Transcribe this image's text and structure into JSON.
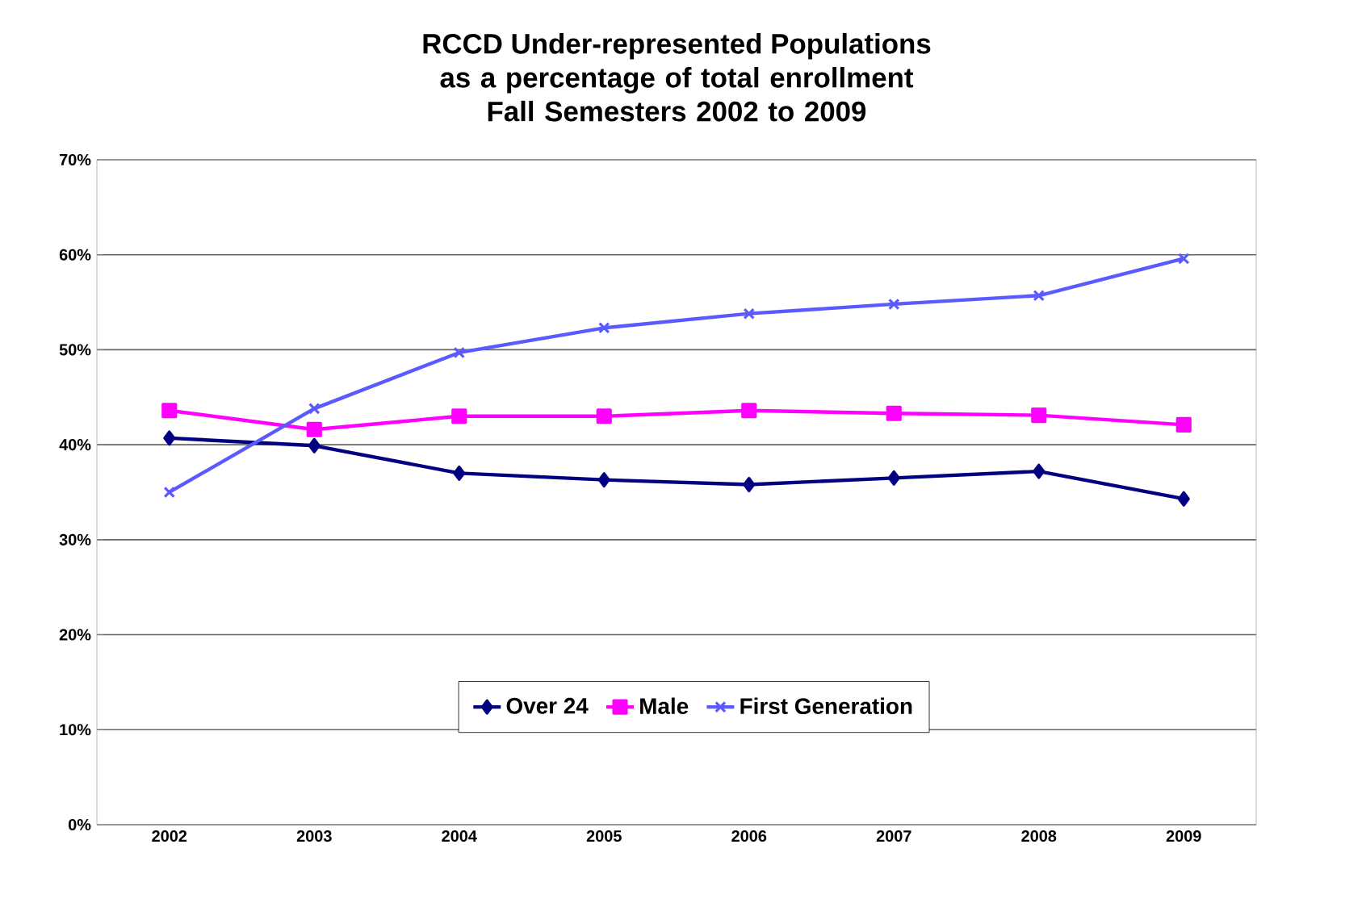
{
  "chart_data": {
    "type": "line",
    "title": "RCCD Under-represented Populations",
    "subtitle": "as a percentage of total enrollment Fall Semesters 2002 to 2009",
    "categories": [
      "2002",
      "2003",
      "2004",
      "2005",
      "2006",
      "2007",
      "2008",
      "2009"
    ],
    "series": [
      {
        "name": "Over 24",
        "color": "#000080",
        "marker": "diamond",
        "values": [
          40.7,
          39.9,
          37.0,
          36.3,
          35.8,
          36.5,
          37.2,
          34.3
        ]
      },
      {
        "name": "Male",
        "color": "#ff00ff",
        "marker": "square",
        "values": [
          43.6,
          41.6,
          43.0,
          43.0,
          43.6,
          43.3,
          43.1,
          42.1
        ]
      },
      {
        "name": "First Generation",
        "color": "#5a5aff",
        "marker": "cross",
        "values": [
          35.0,
          43.8,
          49.7,
          52.3,
          53.8,
          54.8,
          55.7,
          59.6
        ]
      }
    ],
    "ylim": [
      0,
      70
    ],
    "yticks": [
      {
        "value": 0,
        "label": "0%"
      },
      {
        "value": 10,
        "label": "10%"
      },
      {
        "value": 20,
        "label": "20%"
      },
      {
        "value": 30,
        "label": "30%"
      },
      {
        "value": 40,
        "label": "40%"
      },
      {
        "value": 50,
        "label": "50%"
      },
      {
        "value": 60,
        "label": "60%"
      },
      {
        "value": 70,
        "label": "70%"
      }
    ],
    "grid": "y",
    "legend": "bottom",
    "line_style": "solid"
  }
}
